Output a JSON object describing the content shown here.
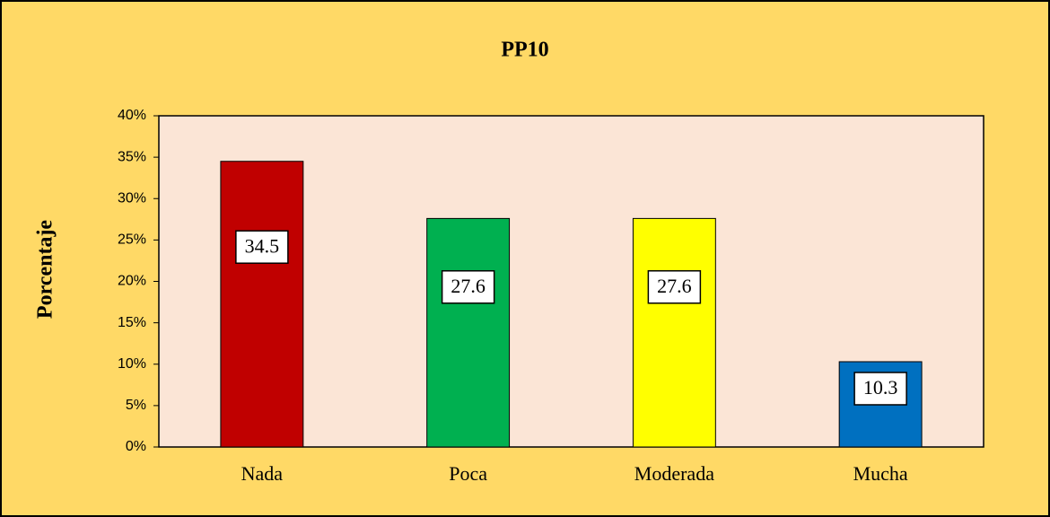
{
  "chart_data": {
    "type": "bar",
    "title": "PP10",
    "y_label": "Porcentaje",
    "categories": [
      "Nada",
      "Poca",
      "Moderada",
      "Mucha"
    ],
    "values": [
      34.5,
      27.6,
      27.6,
      10.3
    ],
    "colors": [
      "#c00000",
      "#00b050",
      "#ffff00",
      "#0070c0"
    ],
    "ylim": [
      0,
      40
    ],
    "yticks": [
      {
        "value": 0,
        "label": "0%"
      },
      {
        "value": 5,
        "label": "5%"
      },
      {
        "value": 10,
        "label": "10%"
      },
      {
        "value": 15,
        "label": "15%"
      },
      {
        "value": 20,
        "label": "20%"
      },
      {
        "value": 25,
        "label": "25%"
      },
      {
        "value": 30,
        "label": "30%"
      },
      {
        "value": 35,
        "label": "35%"
      },
      {
        "value": 40,
        "label": "40%"
      }
    ],
    "grid": false
  }
}
